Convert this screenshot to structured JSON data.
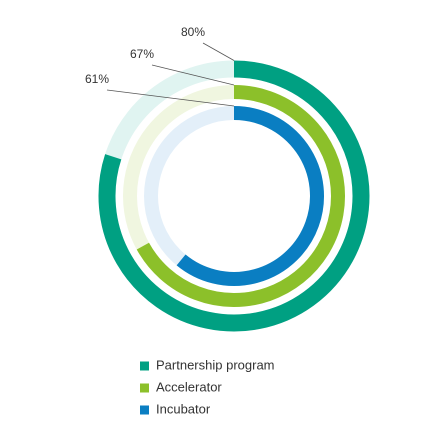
{
  "chart_data": {
    "type": "radial_bar",
    "ylim": [
      0,
      100
    ],
    "series": [
      {
        "name": "Partnership program",
        "color": "#00a082",
        "track": "#e0f4f1",
        "values": [
          80
        ],
        "value_labels": [
          "80%"
        ]
      },
      {
        "name": "Accelerator",
        "color": "#8cc02a",
        "track": "#f0f6e0",
        "values": [
          67
        ],
        "value_labels": [
          "67%"
        ]
      },
      {
        "name": "Incubator",
        "color": "#0a7ec2",
        "track": "#e3eff9",
        "values": [
          61
        ],
        "value_labels": [
          "61%"
        ]
      }
    ]
  }
}
